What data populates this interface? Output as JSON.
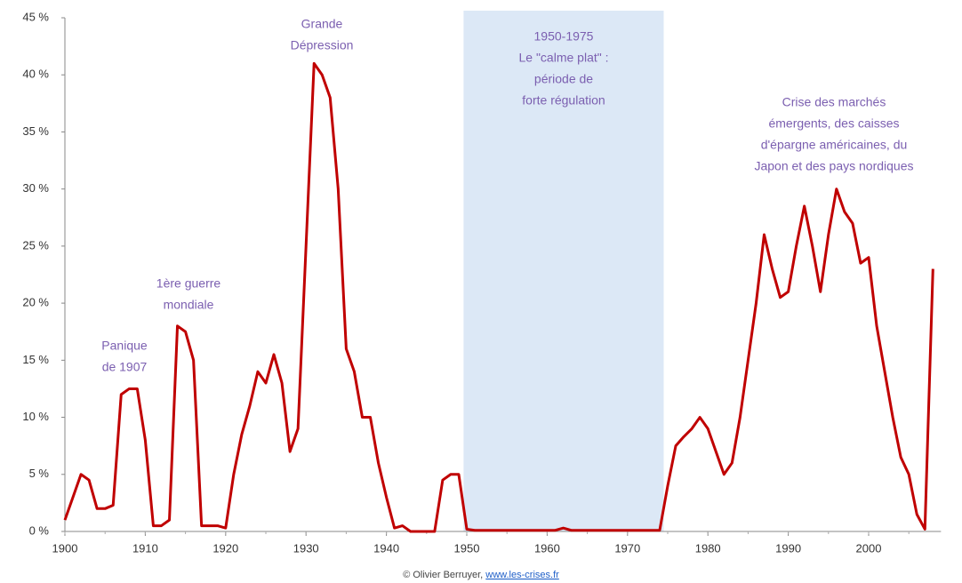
{
  "chart_data": {
    "type": "line",
    "x": [
      1900,
      1901,
      1902,
      1903,
      1904,
      1905,
      1906,
      1907,
      1908,
      1909,
      1910,
      1911,
      1912,
      1913,
      1914,
      1915,
      1916,
      1917,
      1918,
      1919,
      1920,
      1921,
      1922,
      1923,
      1924,
      1925,
      1926,
      1927,
      1928,
      1929,
      1930,
      1931,
      1932,
      1933,
      1934,
      1935,
      1936,
      1937,
      1938,
      1939,
      1940,
      1941,
      1942,
      1943,
      1944,
      1945,
      1946,
      1947,
      1948,
      1949,
      1950,
      1951,
      1952,
      1953,
      1954,
      1955,
      1956,
      1957,
      1958,
      1959,
      1960,
      1961,
      1962,
      1963,
      1964,
      1965,
      1966,
      1967,
      1968,
      1969,
      1970,
      1971,
      1972,
      1973,
      1974,
      1975,
      1976,
      1977,
      1978,
      1979,
      1980,
      1981,
      1982,
      1983,
      1984,
      1985,
      1986,
      1987,
      1988,
      1989,
      1990,
      1991,
      1992,
      1993,
      1994,
      1995,
      1996,
      1997,
      1998,
      1999,
      2000,
      2001,
      2002,
      2003,
      2004,
      2005,
      2006,
      2007,
      2008
    ],
    "series": [
      {
        "color": "#c00000",
        "values": [
          1,
          3,
          5,
          4.5,
          2,
          2,
          2.3,
          12,
          12.5,
          12.5,
          8,
          0.5,
          0.5,
          1,
          18,
          17.5,
          15,
          0.5,
          0.5,
          0.5,
          0.3,
          5,
          8.5,
          11,
          14,
          13,
          15.5,
          13,
          7,
          9,
          25,
          41,
          40,
          38,
          30,
          16,
          14,
          10,
          10,
          6,
          3,
          0.3,
          0.5,
          0,
          0,
          0,
          0,
          4.5,
          5,
          5,
          0.2,
          0.1,
          0.1,
          0.1,
          0.1,
          0.1,
          0.1,
          0.1,
          0.1,
          0.1,
          0.1,
          0.1,
          0.3,
          0.1,
          0.1,
          0.1,
          0.1,
          0.1,
          0.1,
          0.1,
          0.1,
          0.1,
          0.1,
          0.1,
          0.1,
          4,
          7.5,
          8.3,
          9,
          10,
          9,
          7,
          5,
          6,
          10,
          15,
          20,
          26,
          23,
          20.5,
          21,
          25,
          28.5,
          25,
          21,
          26,
          30,
          28,
          27,
          23.5,
          24,
          18,
          14,
          10,
          6.5,
          5,
          1.5,
          0.2,
          23
        ]
      }
    ],
    "xlim": [
      1900,
      2009
    ],
    "xticks": [
      1900,
      1910,
      1920,
      1930,
      1940,
      1950,
      1960,
      1970,
      1980,
      1990,
      2000
    ],
    "ylim": [
      0,
      45
    ],
    "yticks": [
      {
        "value": 0,
        "label": "0 %"
      },
      {
        "value": 5,
        "label": "5 %"
      },
      {
        "value": 10,
        "label": "10 %"
      },
      {
        "value": 15,
        "label": "15 %"
      },
      {
        "value": 20,
        "label": "20 %"
      },
      {
        "value": 25,
        "label": "25 %"
      },
      {
        "value": 30,
        "label": "30 %"
      },
      {
        "value": 35,
        "label": "35 %"
      },
      {
        "value": 40,
        "label": "40 %"
      },
      {
        "value": 45,
        "label": "45 %"
      }
    ],
    "shaded_span": {
      "start": 1949.6,
      "end": 1974.5,
      "color": "#dce8f6"
    },
    "annotations": [
      {
        "lines": [
          "Panique",
          "de 1907"
        ]
      },
      {
        "lines": [
          "1ère guerre",
          "mondiale"
        ]
      },
      {
        "lines": [
          "Grande",
          "Dépression"
        ]
      },
      {
        "lines": [
          "1950-1975",
          "Le \"calme plat\" :",
          "période de",
          "forte régulation"
        ]
      },
      {
        "lines": [
          "Crise des marchés",
          "émergents, des caisses",
          "d'épargne américaines, du",
          "Japon et des pays nordiques"
        ]
      }
    ],
    "credit": {
      "author": "© Olivier Berruyer,",
      "link": "www.les-crises.fr"
    }
  }
}
